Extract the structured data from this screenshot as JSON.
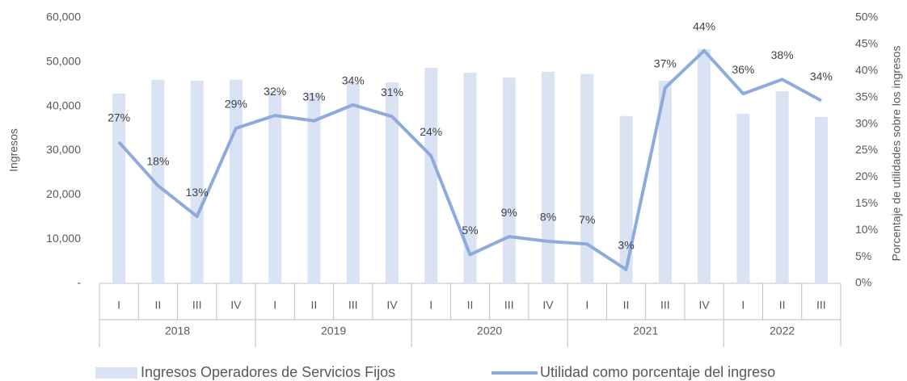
{
  "chart_data": {
    "type": "bar-line",
    "y_label": "Ingresos",
    "y2_label": "Porcentaje de utilidades sobre los ingresos",
    "groups": [
      {
        "label": "2018",
        "categories": [
          "I",
          "II",
          "III",
          "IV"
        ]
      },
      {
        "label": "2019",
        "categories": [
          "I",
          "II",
          "III",
          "IV"
        ]
      },
      {
        "label": "2020",
        "categories": [
          "I",
          "II",
          "III",
          "IV"
        ]
      },
      {
        "label": "2021",
        "categories": [
          "I",
          "II",
          "III",
          "IV"
        ]
      },
      {
        "label": "2022",
        "categories": [
          "I",
          "II",
          "III"
        ]
      }
    ],
    "series": [
      {
        "name": "Ingresos Operadores de Servicios Fijos",
        "type": "bar",
        "color": "#dae3f3",
        "values": [
          42900,
          46000,
          45800,
          46000,
          43400,
          43000,
          45500,
          45400,
          48700,
          47600,
          46500,
          47800,
          47300,
          37800,
          45800,
          52900,
          38300,
          43400,
          37600
        ]
      },
      {
        "name": "Utilidad como porcentaje del ingreso",
        "type": "line",
        "axis": "y2",
        "color": "#8faadc",
        "values": [
          26.6,
          18.4,
          12.6,
          29.2,
          31.6,
          30.6,
          33.6,
          31.4,
          24.0,
          5.4,
          8.8,
          7.9,
          7.4,
          2.6,
          36.8,
          43.8,
          35.7,
          38.4,
          34.4
        ],
        "value_labels": [
          "27%",
          "18%",
          "13%",
          "29%",
          "32%",
          "31%",
          "34%",
          "31%",
          "24%",
          "5%",
          "9%",
          "8%",
          "7%",
          "3%",
          "37%",
          "44%",
          "36%",
          "38%",
          "34%"
        ]
      }
    ],
    "ylim": [
      0,
      60000
    ],
    "yticks": [
      {
        "value": 0,
        "label": "-"
      },
      {
        "value": 10000,
        "label": "10,000"
      },
      {
        "value": 20000,
        "label": "20,000"
      },
      {
        "value": 30000,
        "label": "30,000"
      },
      {
        "value": 40000,
        "label": "40,000"
      },
      {
        "value": 50000,
        "label": "50,000"
      },
      {
        "value": 60000,
        "label": "60,000"
      }
    ],
    "y2lim": [
      0,
      50
    ],
    "y2ticks": [
      {
        "value": 0,
        "label": "0%"
      },
      {
        "value": 5,
        "label": "5%"
      },
      {
        "value": 10,
        "label": "10%"
      },
      {
        "value": 15,
        "label": "15%"
      },
      {
        "value": 20,
        "label": "20%"
      },
      {
        "value": 25,
        "label": "25%"
      },
      {
        "value": 30,
        "label": "30%"
      },
      {
        "value": 35,
        "label": "35%"
      },
      {
        "value": 40,
        "label": "40%"
      },
      {
        "value": 45,
        "label": "45%"
      },
      {
        "value": 50,
        "label": "50%"
      }
    ],
    "grid": false,
    "legend": "bottom"
  }
}
